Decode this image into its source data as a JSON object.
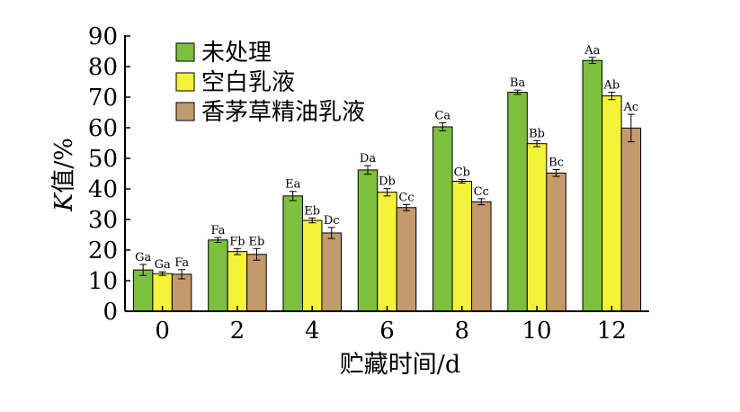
{
  "chart_data": {
    "type": "bar",
    "xlabel": "贮藏时间/d",
    "ylabel_italic": "K",
    "ylabel_rest": "值/%",
    "ylim": [
      0,
      90
    ],
    "yticks": [
      0,
      10,
      20,
      30,
      40,
      50,
      60,
      70,
      80,
      90
    ],
    "categories": [
      "0",
      "2",
      "4",
      "6",
      "8",
      "10",
      "12"
    ],
    "legend_position": "top-left",
    "grid": false,
    "series": [
      {
        "name": "未处理",
        "color": "#7dbf3f",
        "values": [
          13.5,
          23.3,
          37.7,
          46.2,
          60.3,
          71.6,
          82.0
        ],
        "errors": [
          1.8,
          0.8,
          1.5,
          1.4,
          1.3,
          0.7,
          1.0
        ],
        "labels": [
          "Ga",
          "Fa",
          "Ea",
          "Da",
          "Ca",
          "Ba",
          "Aa"
        ]
      },
      {
        "name": "空白乳液",
        "color": "#f4f23a",
        "values": [
          12.3,
          19.5,
          29.7,
          38.9,
          42.5,
          54.8,
          70.4
        ],
        "errors": [
          0.6,
          1.0,
          0.8,
          1.2,
          0.6,
          1.0,
          1.2
        ],
        "labels": [
          "Ga",
          "Fb",
          "Eb",
          "Db",
          "Cb",
          "Bb",
          "Ab"
        ]
      },
      {
        "name": "香茅草精油乳液",
        "color": "#c49a6c",
        "values": [
          12.1,
          18.6,
          25.6,
          33.9,
          35.8,
          45.2,
          59.9
        ],
        "errors": [
          1.5,
          1.9,
          1.8,
          1.0,
          1.0,
          1.1,
          4.5
        ],
        "labels": [
          "Fa",
          "Eb",
          "Dc",
          "Cc",
          "Cc",
          "Bc",
          "Ac"
        ]
      }
    ]
  }
}
